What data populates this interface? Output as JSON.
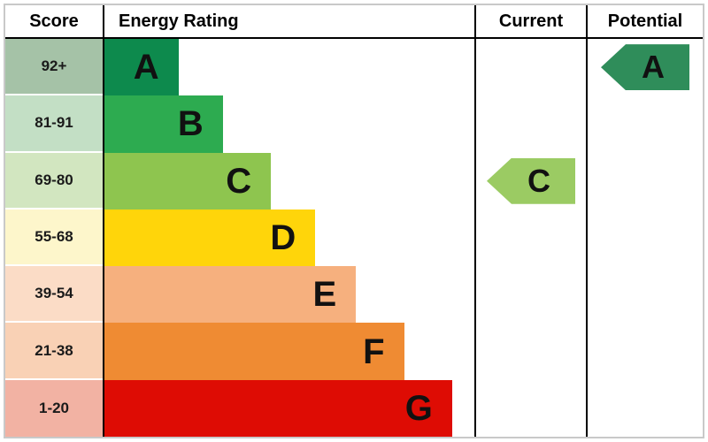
{
  "header": {
    "score": "Score",
    "rating": "Energy Rating",
    "current": "Current",
    "potential": "Potential"
  },
  "chart_data": {
    "type": "bar",
    "title": "Energy Rating",
    "categories": [
      "A",
      "B",
      "C",
      "D",
      "E",
      "F",
      "G"
    ],
    "score_ranges": [
      "92+",
      "81-91",
      "69-80",
      "55-68",
      "39-54",
      "21-38",
      "1-20"
    ],
    "bands": [
      {
        "letter": "A",
        "score": "92+",
        "color": "#0d8a4d",
        "pale_color": "#a5c2a7",
        "width_pct": 20
      },
      {
        "letter": "B",
        "score": "81-91",
        "color": "#2dab50",
        "pale_color": "#c3dfc5",
        "width_pct": 32
      },
      {
        "letter": "C",
        "score": "69-80",
        "color": "#8ec54f",
        "pale_color": "#d2e6c0",
        "width_pct": 45
      },
      {
        "letter": "D",
        "score": "55-68",
        "color": "#ffd50a",
        "pale_color": "#fdf6cb",
        "width_pct": 57
      },
      {
        "letter": "E",
        "score": "39-54",
        "color": "#f6b07e",
        "pale_color": "#fbdcc6",
        "width_pct": 68
      },
      {
        "letter": "F",
        "score": "21-38",
        "color": "#ef8b33",
        "pale_color": "#f9d1b5",
        "width_pct": 81
      },
      {
        "letter": "G",
        "score": "1-20",
        "color": "#de0c04",
        "pale_color": "#f2b2a3",
        "width_pct": 94
      }
    ],
    "current": {
      "letter": "C",
      "band": "69-80",
      "arrow_color": "#9bcb63",
      "row_index": 2
    },
    "potential": {
      "letter": "A",
      "band": "92+",
      "arrow_color": "#2f8d5a",
      "row_index": 0
    }
  }
}
